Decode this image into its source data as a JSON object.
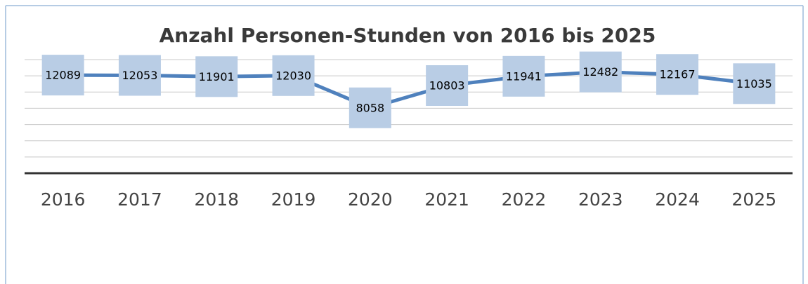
{
  "chart_data": {
    "type": "line",
    "title": "Anzahl Personen-Stunden von 2016 bis 2025",
    "categories": [
      "2016",
      "2017",
      "2018",
      "2019",
      "2020",
      "2021",
      "2022",
      "2023",
      "2024",
      "2025"
    ],
    "series": [
      {
        "name": "Personen-Stunden",
        "color": "#4f81bd",
        "values": [
          12089,
          12053,
          11901,
          12030,
          8058,
          10803,
          11941,
          12482,
          12167,
          11035
        ]
      }
    ],
    "ylim": [
      0,
      14000
    ],
    "yticks": [
      0,
      2000,
      4000,
      6000,
      8000,
      10000,
      12000,
      14000
    ],
    "grid": true
  }
}
